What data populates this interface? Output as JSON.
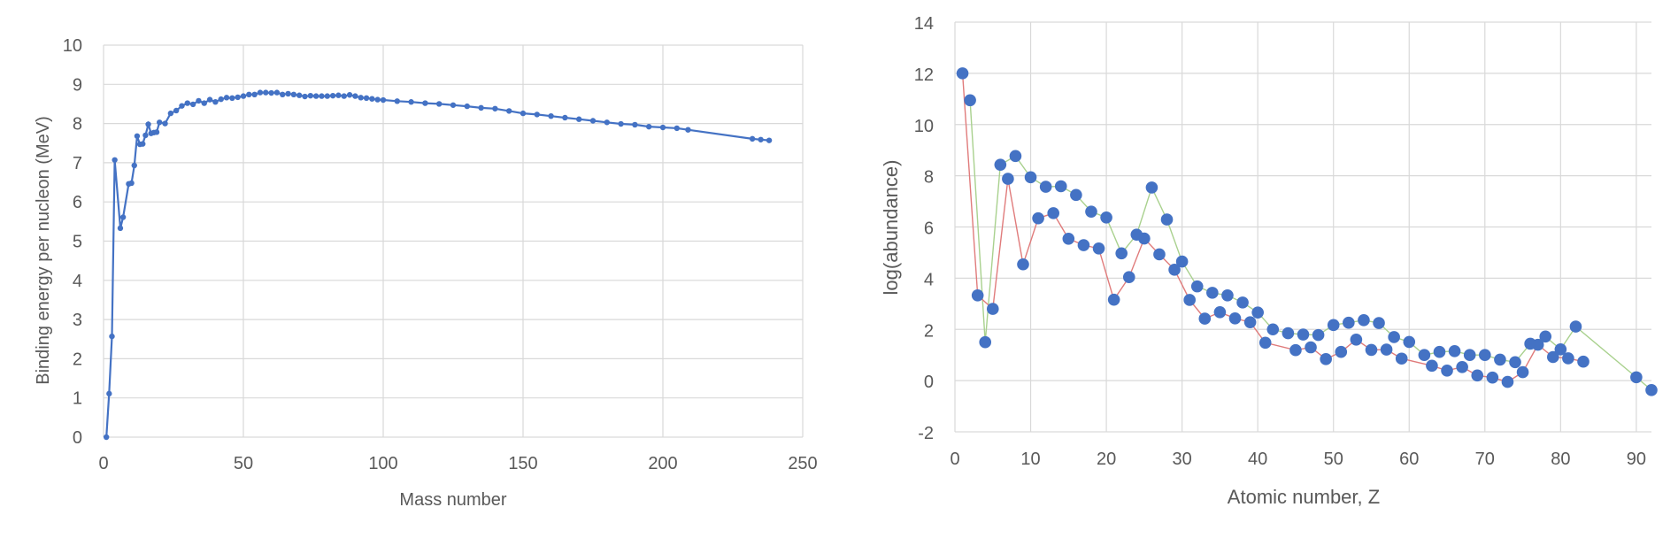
{
  "chart_data": [
    {
      "type": "line",
      "title": "",
      "xlabel": "Mass number",
      "ylabel": "Binding energy per nucleon (MeV)",
      "xlim": [
        0,
        250
      ],
      "ylim": [
        0,
        10
      ],
      "xticks": [
        "0",
        "50",
        "100",
        "150",
        "200",
        "250"
      ],
      "yticks": [
        "0",
        "1",
        "2",
        "3",
        "4",
        "5",
        "6",
        "7",
        "8",
        "9",
        "10"
      ],
      "grid": true,
      "legend": "none",
      "colors": {
        "series": "#4472c4"
      },
      "series": [
        {
          "x": [
            1,
            2,
            3,
            4,
            6,
            7,
            9,
            10,
            11,
            12,
            13,
            14,
            15,
            16,
            17,
            18,
            19,
            20,
            22,
            24,
            26,
            28,
            30,
            32,
            34,
            36,
            38,
            40,
            42,
            44,
            46,
            48,
            50,
            52,
            54,
            56,
            58,
            60,
            62,
            64,
            66,
            68,
            70,
            72,
            74,
            76,
            78,
            80,
            82,
            84,
            86,
            88,
            90,
            92,
            94,
            96,
            98,
            100,
            105,
            110,
            115,
            120,
            125,
            130,
            135,
            140,
            145,
            150,
            155,
            160,
            165,
            170,
            175,
            180,
            185,
            190,
            195,
            200,
            205,
            209,
            232,
            235,
            238
          ],
          "y": [
            0,
            1.11,
            2.57,
            7.07,
            5.33,
            5.61,
            6.46,
            6.48,
            6.93,
            7.68,
            7.47,
            7.48,
            7.7,
            7.98,
            7.75,
            7.77,
            7.78,
            8.03,
            8.0,
            8.26,
            8.33,
            8.45,
            8.52,
            8.49,
            8.58,
            8.52,
            8.61,
            8.55,
            8.62,
            8.66,
            8.65,
            8.67,
            8.7,
            8.74,
            8.74,
            8.79,
            8.79,
            8.78,
            8.79,
            8.74,
            8.76,
            8.74,
            8.72,
            8.69,
            8.71,
            8.7,
            8.7,
            8.7,
            8.71,
            8.72,
            8.7,
            8.73,
            8.7,
            8.66,
            8.65,
            8.63,
            8.61,
            8.6,
            8.57,
            8.55,
            8.52,
            8.5,
            8.47,
            8.44,
            8.4,
            8.38,
            8.32,
            8.26,
            8.23,
            8.19,
            8.15,
            8.11,
            8.07,
            8.03,
            7.99,
            7.97,
            7.92,
            7.9,
            7.88,
            7.84,
            7.61,
            7.59,
            7.57
          ]
        }
      ]
    },
    {
      "type": "scatter",
      "title": "",
      "xlabel": "Atomic number, Z",
      "ylabel": "log(abundance)",
      "xlim": [
        0,
        92
      ],
      "ylim": [
        -2,
        14
      ],
      "xticks": [
        "0",
        "10",
        "20",
        "30",
        "40",
        "50",
        "60",
        "70",
        "80",
        "90"
      ],
      "yticks": [
        "-2",
        "0",
        "2",
        "4",
        "6",
        "8",
        "10",
        "12",
        "14"
      ],
      "grid": true,
      "legend": "none",
      "colors": {
        "points": "#4472c4",
        "even_line": "#a9d18e",
        "odd_line": "#e07b7b"
      },
      "points": {
        "x": [
          1,
          2,
          3,
          4,
          5,
          6,
          7,
          8,
          9,
          10,
          11,
          12,
          13,
          14,
          15,
          16,
          17,
          18,
          19,
          20,
          21,
          22,
          23,
          24,
          25,
          26,
          27,
          28,
          29,
          30,
          31,
          32,
          33,
          34,
          35,
          36,
          37,
          38,
          39,
          40,
          41,
          42,
          44,
          45,
          46,
          47,
          48,
          49,
          50,
          51,
          52,
          53,
          54,
          55,
          56,
          57,
          58,
          59,
          60,
          62,
          63,
          64,
          65,
          66,
          67,
          68,
          69,
          70,
          71,
          72,
          73,
          74,
          75,
          76,
          77,
          78,
          79,
          80,
          81,
          82,
          83,
          90,
          92
        ],
        "y": [
          12.0,
          10.95,
          3.33,
          1.5,
          2.8,
          8.43,
          7.88,
          8.77,
          4.54,
          7.94,
          6.34,
          7.57,
          6.54,
          7.59,
          5.54,
          7.25,
          5.29,
          6.6,
          5.16,
          6.37,
          3.16,
          4.97,
          4.04,
          5.7,
          5.55,
          7.54,
          4.93,
          6.29,
          4.33,
          4.65,
          3.15,
          3.68,
          2.42,
          3.43,
          2.67,
          3.33,
          2.43,
          3.05,
          2.28,
          2.66,
          1.48,
          2.0,
          1.85,
          1.19,
          1.8,
          1.3,
          1.78,
          0.84,
          2.17,
          1.12,
          2.26,
          1.6,
          2.36,
          1.2,
          2.25,
          1.21,
          1.7,
          0.86,
          1.51,
          1.0,
          0.58,
          1.12,
          0.39,
          1.15,
          0.53,
          1.0,
          0.2,
          1.0,
          0.12,
          0.82,
          -0.05,
          0.72,
          0.33,
          1.44,
          1.4,
          1.72,
          0.92,
          1.22,
          0.87,
          2.11,
          0.74,
          0.13,
          -0.37
        ]
      }
    }
  ]
}
